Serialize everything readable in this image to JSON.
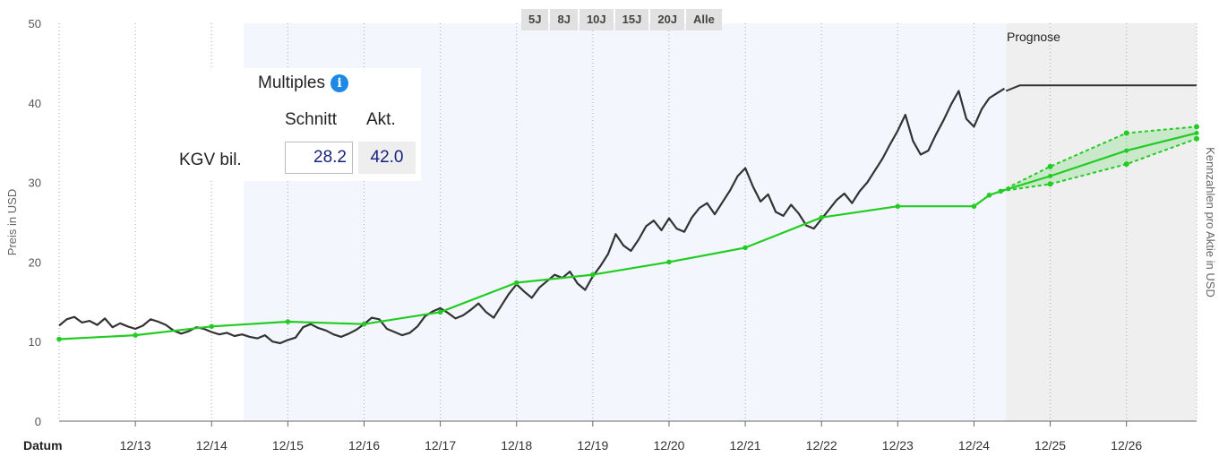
{
  "colors": {
    "price_line": "#333333",
    "metric_line": "#22cc22",
    "forecast_bg": "#efefef",
    "highlight_bg": "#f3f7fd",
    "info_icon": "#1e88e5"
  },
  "range_buttons": [
    "5J",
    "8J",
    "10J",
    "15J",
    "20J",
    "Alle"
  ],
  "forecast_label": "Prognose",
  "multiples": {
    "title": "Multiples",
    "info_icon": "info-icon",
    "col_schnitt": "Schnitt",
    "col_akt": "Akt.",
    "row_label": "KGV bil.",
    "value_schnitt": "28.2",
    "value_akt": "42.0"
  },
  "chart_data": {
    "type": "line",
    "xlabel": "Datum",
    "ylabel": "Preis in USD",
    "y2label": "Kennzahlen pro Aktie in USD",
    "ylim": [
      0,
      50
    ],
    "yticks": [
      0,
      10,
      20,
      30,
      40,
      50
    ],
    "xlim": [
      2012.0,
      2026.92
    ],
    "xticks": [
      {
        "x": 2013.0,
        "label": "12/13"
      },
      {
        "x": 2014.0,
        "label": "12/14"
      },
      {
        "x": 2015.0,
        "label": "12/15"
      },
      {
        "x": 2016.0,
        "label": "12/16"
      },
      {
        "x": 2017.0,
        "label": "12/17"
      },
      {
        "x": 2018.0,
        "label": "12/18"
      },
      {
        "x": 2019.0,
        "label": "12/19"
      },
      {
        "x": 2020.0,
        "label": "12/20"
      },
      {
        "x": 2021.0,
        "label": "12/21"
      },
      {
        "x": 2022.0,
        "label": "12/22"
      },
      {
        "x": 2023.0,
        "label": "12/23"
      },
      {
        "x": 2024.0,
        "label": "12/24"
      },
      {
        "x": 2025.0,
        "label": "12/25"
      },
      {
        "x": 2026.0,
        "label": "12/26"
      }
    ],
    "highlight_range": [
      2014.42,
      2024.42
    ],
    "forecast_start": 2024.42,
    "grid": "vertical-dotted",
    "price_series": {
      "x": [
        2012.0,
        2012.1,
        2012.2,
        2012.3,
        2012.4,
        2012.5,
        2012.6,
        2012.7,
        2012.8,
        2012.9,
        2013.0,
        2013.1,
        2013.2,
        2013.3,
        2013.4,
        2013.5,
        2013.6,
        2013.7,
        2013.8,
        2013.9,
        2014.0,
        2014.1,
        2014.2,
        2014.3,
        2014.4,
        2014.5,
        2014.6,
        2014.7,
        2014.8,
        2014.9,
        2015.0,
        2015.1,
        2015.2,
        2015.3,
        2015.4,
        2015.5,
        2015.6,
        2015.7,
        2015.8,
        2015.9,
        2016.0,
        2016.1,
        2016.2,
        2016.3,
        2016.4,
        2016.5,
        2016.6,
        2016.7,
        2016.8,
        2016.9,
        2017.0,
        2017.1,
        2017.2,
        2017.3,
        2017.4,
        2017.5,
        2017.6,
        2017.7,
        2017.8,
        2017.9,
        2018.0,
        2018.1,
        2018.2,
        2018.3,
        2018.4,
        2018.5,
        2018.6,
        2018.7,
        2018.8,
        2018.9,
        2019.0,
        2019.1,
        2019.2,
        2019.3,
        2019.4,
        2019.5,
        2019.6,
        2019.7,
        2019.8,
        2019.9,
        2020.0,
        2020.1,
        2020.2,
        2020.3,
        2020.4,
        2020.5,
        2020.6,
        2020.7,
        2020.8,
        2020.9,
        2021.0,
        2021.1,
        2021.2,
        2021.3,
        2021.4,
        2021.5,
        2021.6,
        2021.7,
        2021.8,
        2021.9,
        2022.0,
        2022.1,
        2022.2,
        2022.3,
        2022.4,
        2022.5,
        2022.6,
        2022.7,
        2022.8,
        2022.9,
        2023.0,
        2023.1,
        2023.2,
        2023.3,
        2023.4,
        2023.5,
        2023.6,
        2023.7,
        2023.8,
        2023.9,
        2024.0,
        2024.1,
        2024.2,
        2024.3,
        2024.4
      ],
      "y": [
        12.0,
        12.8,
        13.1,
        12.4,
        12.6,
        12.1,
        12.9,
        11.8,
        12.3,
        11.9,
        11.6,
        12.0,
        12.8,
        12.5,
        12.1,
        11.4,
        11.0,
        11.3,
        11.8,
        11.6,
        11.2,
        10.9,
        11.1,
        10.7,
        10.9,
        10.6,
        10.4,
        10.8,
        10.0,
        9.8,
        10.2,
        10.5,
        11.8,
        12.2,
        11.7,
        11.4,
        10.9,
        10.6,
        11.0,
        11.5,
        12.2,
        13.0,
        12.8,
        11.6,
        11.2,
        10.8,
        11.1,
        11.9,
        13.2,
        13.8,
        14.2,
        13.6,
        12.9,
        13.3,
        14.0,
        14.8,
        13.7,
        13.0,
        14.5,
        16.0,
        17.2,
        16.3,
        15.5,
        16.8,
        17.6,
        18.4,
        18.0,
        18.8,
        17.3,
        16.5,
        18.2,
        19.5,
        21.0,
        23.5,
        22.1,
        21.4,
        22.8,
        24.5,
        25.2,
        24.0,
        25.5,
        24.2,
        23.8,
        25.6,
        26.8,
        27.4,
        26.0,
        27.5,
        29.0,
        30.8,
        31.8,
        29.5,
        27.6,
        28.5,
        26.3,
        25.8,
        27.2,
        26.1,
        24.6,
        24.2,
        25.4,
        26.6,
        27.8,
        28.6,
        27.4,
        28.9,
        30.0,
        31.5,
        33.0,
        34.8,
        36.5,
        38.5,
        35.2,
        33.5,
        34.0,
        36.0,
        37.8,
        39.8,
        41.5,
        38.0,
        37.0,
        39.2,
        40.6,
        41.2,
        41.8
      ]
    },
    "price_forecast": {
      "x": [
        2024.42,
        2024.6,
        2026.92
      ],
      "y": [
        41.5,
        42.2,
        42.2
      ]
    },
    "metric_series": {
      "x": [
        2012.0,
        2013.0,
        2014.0,
        2015.0,
        2016.0,
        2017.0,
        2018.0,
        2019.0,
        2020.0,
        2021.0,
        2022.0,
        2023.0,
        2024.0,
        2024.2,
        2024.35
      ],
      "y": [
        10.3,
        10.8,
        11.9,
        12.5,
        12.2,
        13.7,
        17.4,
        18.4,
        20.0,
        21.8,
        25.6,
        27.0,
        27.0,
        28.4,
        28.9
      ]
    },
    "metric_forecast": {
      "x": [
        2024.35,
        2025.0,
        2026.0,
        2026.92
      ],
      "mid": [
        28.9,
        30.8,
        34.0,
        36.2
      ],
      "upper": [
        28.9,
        32.0,
        36.2,
        37.0
      ],
      "lower": [
        28.9,
        29.8,
        32.3,
        35.5
      ]
    }
  }
}
